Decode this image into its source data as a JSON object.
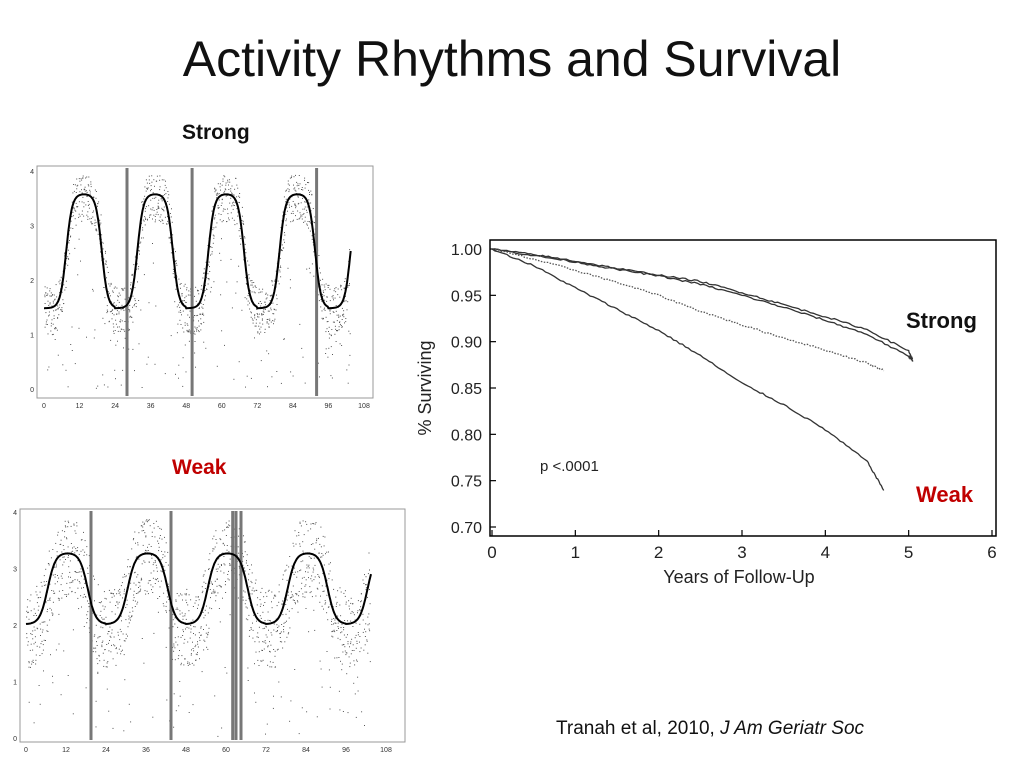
{
  "slide": {
    "title": "Activity Rhythms and Survival",
    "strong_label": "Strong",
    "weak_label": "Weak",
    "citation_prefix": "Tranah et al, 2010, ",
    "citation_journal": "J Am Geriatr Soc"
  },
  "colors": {
    "text": "#111111",
    "weak_red": "#c00000",
    "ink": "#222222",
    "dots": "#555555",
    "frame": "#999999"
  },
  "chart_data": [
    {
      "type": "scatter",
      "panel": "strong-actigraphy",
      "title": "Strong",
      "xlabel": "",
      "ylabel": "",
      "xlim": [
        0,
        108
      ],
      "ylim": [
        0,
        4
      ],
      "x_ticks": [
        "0",
        "12",
        "24",
        "36",
        "48",
        "60",
        "72",
        "84",
        "96",
        "108"
      ],
      "y_ticks": [
        "0",
        "1",
        "2",
        "3",
        "4"
      ],
      "series": [
        {
          "fit": {
            "low": 1.5,
            "high": 3.6,
            "period": 24,
            "rise": 7.5,
            "fall": 19.5,
            "transition": 2.2
          }
        }
      ],
      "gap_bars": [
        28,
        50,
        92
      ],
      "grid": false
    },
    {
      "type": "scatter",
      "panel": "weak-actigraphy",
      "title": "Weak",
      "xlabel": "",
      "ylabel": "",
      "xlim": [
        0,
        108
      ],
      "ylim": [
        0,
        4
      ],
      "x_ticks": [
        "0",
        "12",
        "24",
        "36",
        "48",
        "60",
        "72",
        "84",
        "96",
        "108"
      ],
      "y_ticks": [
        "0",
        "1",
        "2",
        "3",
        "4"
      ],
      "series": [
        {
          "fit": {
            "low": 2.03,
            "high": 3.3,
            "period": 24,
            "rise": 6.5,
            "fall": 18.5,
            "transition": 2.6
          }
        }
      ],
      "gap_bars": [
        19.5,
        43.5,
        62,
        63,
        64.5
      ],
      "grid": false
    },
    {
      "type": "line",
      "panel": "survival-curve",
      "title": "",
      "xlabel": "Years of Follow-Up",
      "ylabel": "% Surviving",
      "xlim": [
        0,
        6
      ],
      "ylim": [
        0.7,
        1.0
      ],
      "x_ticks": [
        "0",
        "1",
        "2",
        "3",
        "4",
        "5",
        "6"
      ],
      "y_ticks": [
        "1.00",
        "0.95",
        "0.90",
        "0.85",
        "0.80",
        "0.75",
        "0.70"
      ],
      "annotations": {
        "p_value": "p <.0001"
      },
      "series": [
        {
          "style": "solid",
          "x": [
            0,
            0.5,
            1,
            1.5,
            2,
            2.5,
            3,
            3.5,
            4,
            4.5,
            5,
            5.05
          ],
          "y": [
            1.0,
            0.993,
            0.986,
            0.978,
            0.971,
            0.962,
            0.95,
            0.937,
            0.923,
            0.908,
            0.884,
            0.881
          ]
        },
        {
          "style": "solid",
          "x": [
            0,
            0.5,
            1,
            1.5,
            2,
            2.5,
            3,
            3.5,
            4,
            4.5,
            5,
            5.05
          ],
          "y": [
            1.0,
            0.994,
            0.987,
            0.979,
            0.972,
            0.965,
            0.953,
            0.94,
            0.927,
            0.913,
            0.89,
            0.879
          ]
        },
        {
          "style": "dotted",
          "x": [
            0,
            0.5,
            1,
            1.5,
            2,
            2.5,
            3,
            3.5,
            4,
            4.5,
            4.7
          ],
          "y": [
            1.0,
            0.989,
            0.977,
            0.964,
            0.95,
            0.933,
            0.918,
            0.904,
            0.891,
            0.877,
            0.869
          ]
        },
        {
          "style": "solid",
          "x": [
            0,
            0.5,
            1,
            1.5,
            2,
            2.5,
            3,
            3.5,
            4,
            4.5,
            4.7
          ],
          "y": [
            1.0,
            0.982,
            0.958,
            0.935,
            0.912,
            0.885,
            0.855,
            0.832,
            0.805,
            0.771,
            0.74
          ]
        }
      ],
      "grid": false
    }
  ]
}
